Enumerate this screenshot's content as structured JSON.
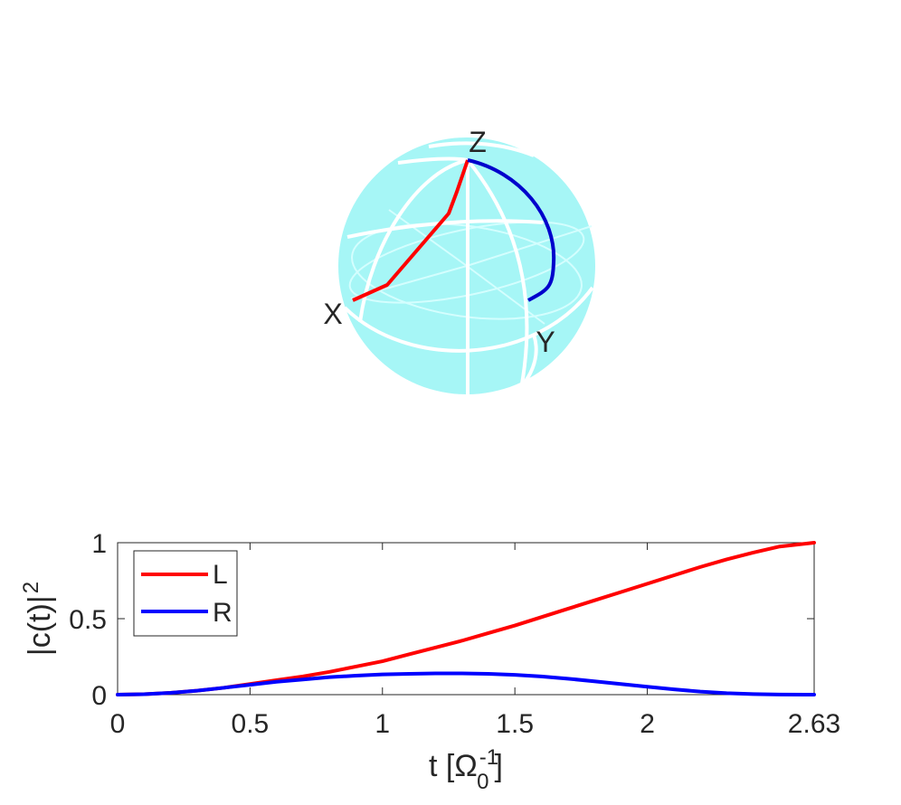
{
  "bloch_sphere": {
    "labels": {
      "x": "X",
      "y": "Y",
      "z": "Z"
    },
    "colors": {
      "sphere_fill": "#a6f6f6",
      "grid_lines": "#ffffff",
      "path_l": "#ff0000",
      "path_r": "#0000cc"
    }
  },
  "chart_data": {
    "type": "line",
    "xlabel": "t [Ω",
    "xlabel_sup": "-1",
    "xlabel_sub": "0",
    "xlabel_end": "]",
    "ylabel": "|c(t)|",
    "ylabel_sup": "2",
    "xlim": [
      0,
      2.63
    ],
    "ylim": [
      0,
      1
    ],
    "xticks": [
      0,
      0.5,
      1,
      1.5,
      2,
      2.63
    ],
    "xtick_labels": [
      "0",
      "0.5",
      "1",
      "1.5",
      "2",
      "2.63"
    ],
    "yticks": [
      0,
      0.5,
      1
    ],
    "ytick_labels": [
      "0",
      "0.5",
      "1"
    ],
    "grid": false,
    "legend_position": "top-left",
    "series": [
      {
        "name": "L",
        "color": "#ff0000",
        "x": [
          0,
          0.1,
          0.2,
          0.3,
          0.4,
          0.5,
          0.6,
          0.7,
          0.8,
          0.9,
          1.0,
          1.1,
          1.2,
          1.3,
          1.4,
          1.5,
          1.6,
          1.7,
          1.8,
          1.9,
          2.0,
          2.1,
          2.2,
          2.3,
          2.4,
          2.5,
          2.63
        ],
        "y": [
          0.0,
          0.003,
          0.012,
          0.026,
          0.045,
          0.07,
          0.095,
          0.12,
          0.15,
          0.185,
          0.22,
          0.265,
          0.31,
          0.355,
          0.405,
          0.455,
          0.51,
          0.565,
          0.62,
          0.675,
          0.73,
          0.785,
          0.84,
          0.89,
          0.935,
          0.975,
          1.0
        ]
      },
      {
        "name": "R",
        "color": "#0000ff",
        "x": [
          0,
          0.1,
          0.2,
          0.3,
          0.4,
          0.5,
          0.6,
          0.7,
          0.8,
          0.9,
          1.0,
          1.1,
          1.2,
          1.3,
          1.4,
          1.5,
          1.6,
          1.7,
          1.8,
          1.9,
          2.0,
          2.1,
          2.2,
          2.3,
          2.4,
          2.5,
          2.63
        ],
        "y": [
          0.0,
          0.003,
          0.012,
          0.026,
          0.045,
          0.065,
          0.085,
          0.1,
          0.115,
          0.125,
          0.133,
          0.137,
          0.14,
          0.14,
          0.137,
          0.13,
          0.12,
          0.105,
          0.088,
          0.07,
          0.052,
          0.035,
          0.02,
          0.01,
          0.004,
          0.001,
          0.0
        ]
      }
    ]
  }
}
